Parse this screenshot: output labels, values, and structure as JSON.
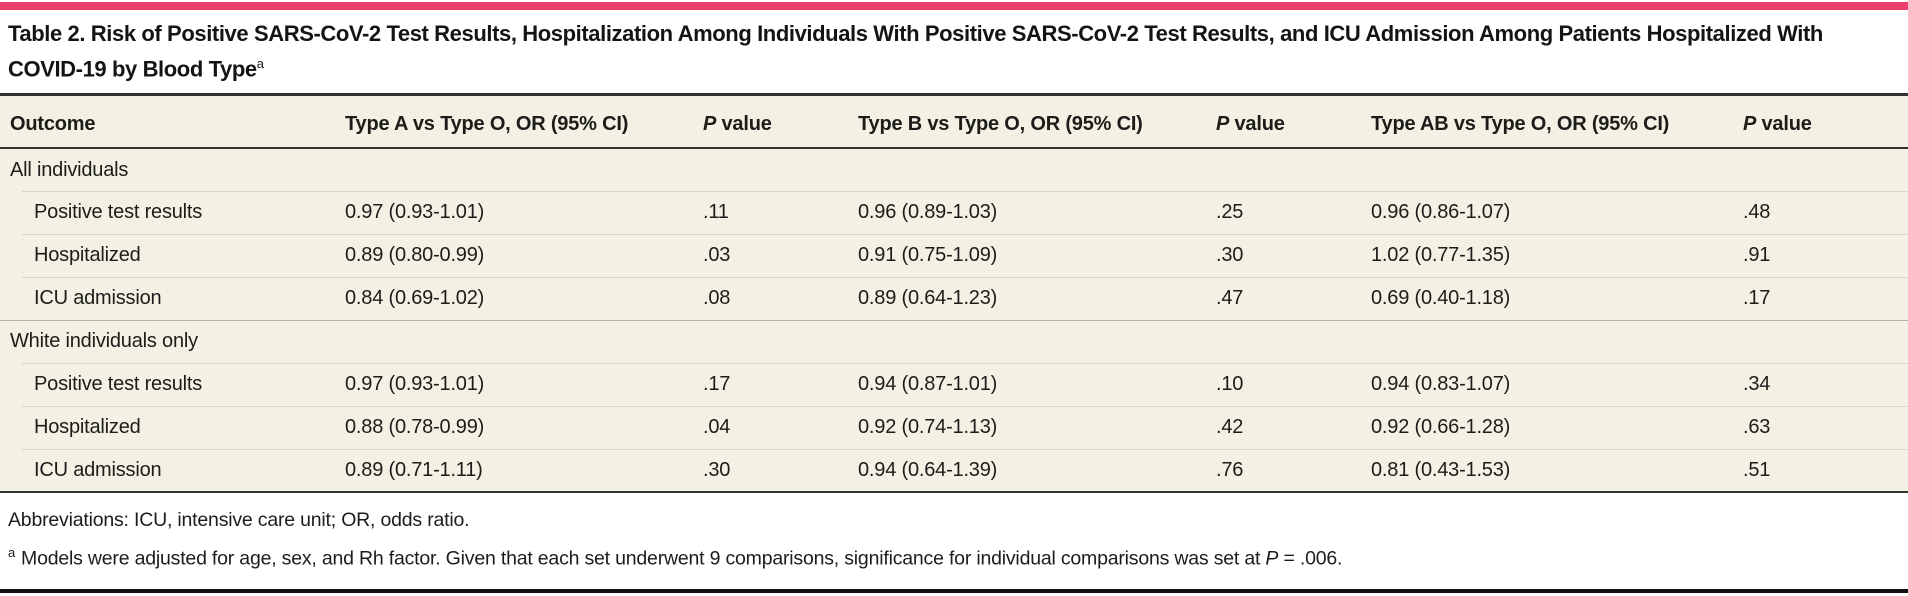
{
  "colors": {
    "accent_pink": "#ed3d6f",
    "table_background": "#f2f1e4",
    "row_divider": "#d8d6c6",
    "section_divider": "#b3b1a2",
    "strong_rule": "#34332e",
    "text_color": "#1d1c19"
  },
  "table": {
    "title": "Table 2. Risk of Positive SARS-CoV-2 Test Results, Hospitalization Among Individuals With Positive SARS-CoV-2 Test Results, and ICU Admission Among Patients Hospitalized With COVID-19 by Blood Type",
    "title_marker": "a",
    "columns": {
      "outcome": "Outcome",
      "type_a": "Type A vs Type O, OR (95% CI)",
      "p1": "P value",
      "type_b": "Type B vs Type O, OR (95% CI)",
      "p2": "P value",
      "type_ab": "Type AB vs Type O, OR (95% CI)",
      "p3": "P value"
    },
    "sections": [
      {
        "label": "All individuals",
        "rows": [
          {
            "outcome": "Positive test results",
            "cells": [
              "0.97 (0.93-1.01)",
              ".11",
              "0.96 (0.89-1.03)",
              ".25",
              "0.96 (0.86-1.07)",
              ".48"
            ]
          },
          {
            "outcome": "Hospitalized",
            "cells": [
              "0.89 (0.80-0.99)",
              ".03",
              "0.91 (0.75-1.09)",
              ".30",
              "1.02 (0.77-1.35)",
              ".91"
            ]
          },
          {
            "outcome": "ICU admission",
            "cells": [
              "0.84 (0.69-1.02)",
              ".08",
              "0.89 (0.64-1.23)",
              ".47",
              "0.69 (0.40-1.18)",
              ".17"
            ]
          }
        ]
      },
      {
        "label": "White individuals only",
        "rows": [
          {
            "outcome": "Positive test results",
            "cells": [
              "0.97 (0.93-1.01)",
              ".17",
              "0.94 (0.87-1.01)",
              ".10",
              "0.94 (0.83-1.07)",
              ".34"
            ]
          },
          {
            "outcome": "Hospitalized",
            "cells": [
              "0.88 (0.78-0.99)",
              ".04",
              "0.92 (0.74-1.13)",
              ".42",
              "0.92 (0.66-1.28)",
              ".63"
            ]
          },
          {
            "outcome": "ICU admission",
            "cells": [
              "0.89 (0.71-1.11)",
              ".30",
              "0.94 (0.64-1.39)",
              ".76",
              "0.81 (0.43-1.53)",
              ".51"
            ]
          }
        ]
      }
    ]
  },
  "footnotes": {
    "abbreviations": "Abbreviations: ICU, intensive care unit; OR, odds ratio.",
    "marker": "a",
    "note_before": "Models were adjusted for age, sex, and Rh factor. Given that each set underwent 9 comparisons, significance for individual comparisons was set at ",
    "note_italic": "P",
    "note_after": " = .006."
  }
}
